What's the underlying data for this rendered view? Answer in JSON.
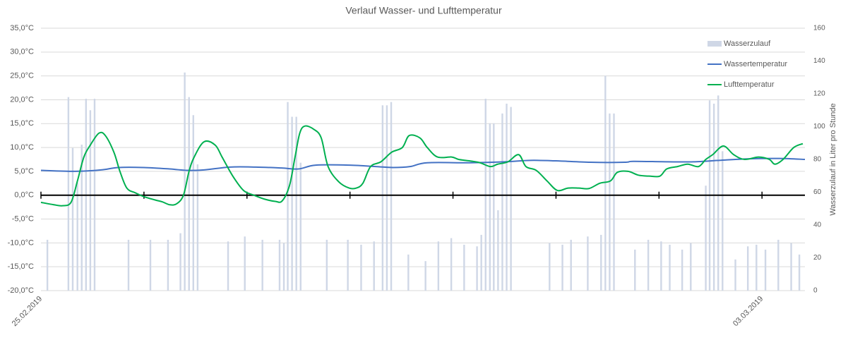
{
  "chart_data": {
    "type": "combo",
    "title": "Verlauf Wasser- und Lufttemperatur",
    "y2_label": "Wasserzulauf in Liter pro Stunde",
    "xlim": [
      0,
      178
    ],
    "xticks": [
      {
        "value": 0,
        "label": "25.02.2019"
      },
      {
        "value": 24,
        "label": null
      },
      {
        "value": 48,
        "label": null
      },
      {
        "value": 72,
        "label": null
      },
      {
        "value": 96,
        "label": null
      },
      {
        "value": 120,
        "label": null
      },
      {
        "value": 144,
        "label": null
      },
      {
        "value": 168,
        "label": "03.03.2019"
      }
    ],
    "ylim": [
      -20,
      35
    ],
    "yticks": [
      {
        "value": -20,
        "label": "-20,0°C"
      },
      {
        "value": -15,
        "label": "-15,0°C"
      },
      {
        "value": -10,
        "label": "-10,0°C"
      },
      {
        "value": -5,
        "label": "-5,0°C"
      },
      {
        "value": 0,
        "label": "0,0°C"
      },
      {
        "value": 5,
        "label": "5,0°C"
      },
      {
        "value": 10,
        "label": "10,0°C"
      },
      {
        "value": 15,
        "label": "15,0°C"
      },
      {
        "value": 20,
        "label": "20,0°C"
      },
      {
        "value": 25,
        "label": "25,0°C"
      },
      {
        "value": 30,
        "label": "30,0°C"
      },
      {
        "value": 35,
        "label": "35,0°C"
      }
    ],
    "y2lim": [
      0,
      160
    ],
    "y2ticks": [
      0,
      20,
      40,
      60,
      80,
      100,
      120,
      140,
      160
    ],
    "grid": true,
    "legend": "top-right",
    "series": [
      {
        "name": "Wasserzulauf",
        "type": "bar",
        "axis": "y2",
        "color": "#cfd7e6",
        "x": [
          1.5,
          6.4,
          7.4,
          8.5,
          9.5,
          10.5,
          11.5,
          12.5,
          20.4,
          25.5,
          29.6,
          32.5,
          33.5,
          34.5,
          35.5,
          36.5,
          43.6,
          47.5,
          51.6,
          55.6,
          56.6,
          57.5,
          58.5,
          59.5,
          60.5,
          66.6,
          71.5,
          74.6,
          77.6,
          79.6,
          80.6,
          81.6,
          85.6,
          89.6,
          92.6,
          95.6,
          98.6,
          101.6,
          102.6,
          103.6,
          104.6,
          105.5,
          106.5,
          107.5,
          108.5,
          109.5,
          118.5,
          121.5,
          123.5,
          127.4,
          130.5,
          131.5,
          132.5,
          133.5,
          138.4,
          141.5,
          144.5,
          146.5,
          149.4,
          151.4,
          154.9,
          155.8,
          156.8,
          157.8,
          158.8,
          161.8,
          164.7,
          166.7,
          168.8,
          171.8,
          174.8,
          176.7
        ],
        "values": [
          31,
          118,
          87,
          66,
          89,
          117,
          110,
          117,
          31,
          31,
          31,
          35,
          133,
          118,
          107,
          77,
          30,
          33,
          31,
          31,
          29,
          115,
          106,
          106,
          78,
          31,
          31,
          28,
          30,
          113,
          113,
          115,
          22,
          18,
          30,
          32,
          28,
          27,
          34,
          117,
          102,
          102,
          49,
          108,
          114,
          112,
          29,
          28,
          31,
          33,
          34,
          131,
          108,
          108,
          25,
          31,
          30,
          28,
          25,
          29,
          64,
          116,
          114,
          119,
          85,
          19,
          27,
          28,
          25,
          31,
          29,
          22
        ]
      },
      {
        "name": "Wassertemperatur",
        "type": "line",
        "color": "#4472c4",
        "x": [
          0,
          8,
          14,
          18,
          24,
          30,
          34,
          38,
          44,
          50,
          56,
          60,
          64,
          72,
          78,
          82,
          86,
          90,
          100,
          108,
          114,
          120,
          128,
          136,
          138,
          146,
          152,
          158,
          164,
          172,
          178
        ],
        "values": [
          5.2,
          5.0,
          5.3,
          5.8,
          5.8,
          5.5,
          5.2,
          5.3,
          5.9,
          5.9,
          5.7,
          5.5,
          6.3,
          6.3,
          6.0,
          5.8,
          6.0,
          6.8,
          6.8,
          7.0,
          7.3,
          7.2,
          6.9,
          6.9,
          7.1,
          7.0,
          7.0,
          7.3,
          7.6,
          7.7,
          7.5
        ]
      },
      {
        "name": "Lufttemperatur",
        "type": "line",
        "color": "#00b050",
        "x": [
          0,
          3,
          5,
          7,
          8.5,
          10,
          11.5,
          13.5,
          15,
          17,
          18.4,
          20,
          22,
          24,
          26.6,
          28.3,
          30,
          31.6,
          33.2,
          34.5,
          35.7,
          38,
          40.6,
          42.2,
          44.7,
          47.2,
          49.6,
          52,
          54.6,
          56.2,
          57.9,
          59.2,
          60.3,
          61.5,
          63.6,
          65.3,
          66.9,
          69.4,
          71.8,
          73.5,
          75,
          76.8,
          79.2,
          81.7,
          84.2,
          85.8,
          88.3,
          90,
          92.4,
          95.7,
          97.3,
          99.8,
          102.3,
          104.7,
          106.4,
          108.8,
          111.3,
          113,
          115.4,
          117.9,
          120.3,
          122.8,
          125.3,
          127.7,
          130.2,
          132.7,
          134.3,
          136.8,
          139.2,
          141.7,
          144.2,
          145.8,
          148.3,
          150.7,
          153.2,
          154.9,
          156.5,
          159,
          161.4,
          163.9,
          167.2,
          169.7,
          171,
          172.9,
          175.4,
          177.5
        ],
        "values": [
          -1.5,
          -2,
          -2.2,
          -1.5,
          3,
          8,
          10.5,
          13,
          12.5,
          9,
          5,
          1.5,
          0.5,
          -0.3,
          -1,
          -1.4,
          -2,
          -1.8,
          0,
          5,
          8,
          11.2,
          10.5,
          8,
          4,
          1,
          0,
          -0.8,
          -1.3,
          -1.2,
          2,
          8,
          13,
          14.5,
          13.8,
          12,
          6,
          2.8,
          1.5,
          1.5,
          2.5,
          6,
          7,
          9,
          10,
          12.5,
          12,
          10,
          8,
          8,
          7.5,
          7.2,
          6.8,
          6,
          6.5,
          7,
          8.5,
          6,
          5.2,
          3,
          1,
          1.5,
          1.5,
          1.4,
          2.5,
          3,
          4.8,
          5,
          4.2,
          4,
          4,
          5.5,
          6,
          6.5,
          6,
          7.5,
          8.5,
          10.3,
          8.5,
          7.5,
          8,
          7.5,
          6.5,
          7.5,
          10,
          10.8
        ]
      }
    ]
  }
}
